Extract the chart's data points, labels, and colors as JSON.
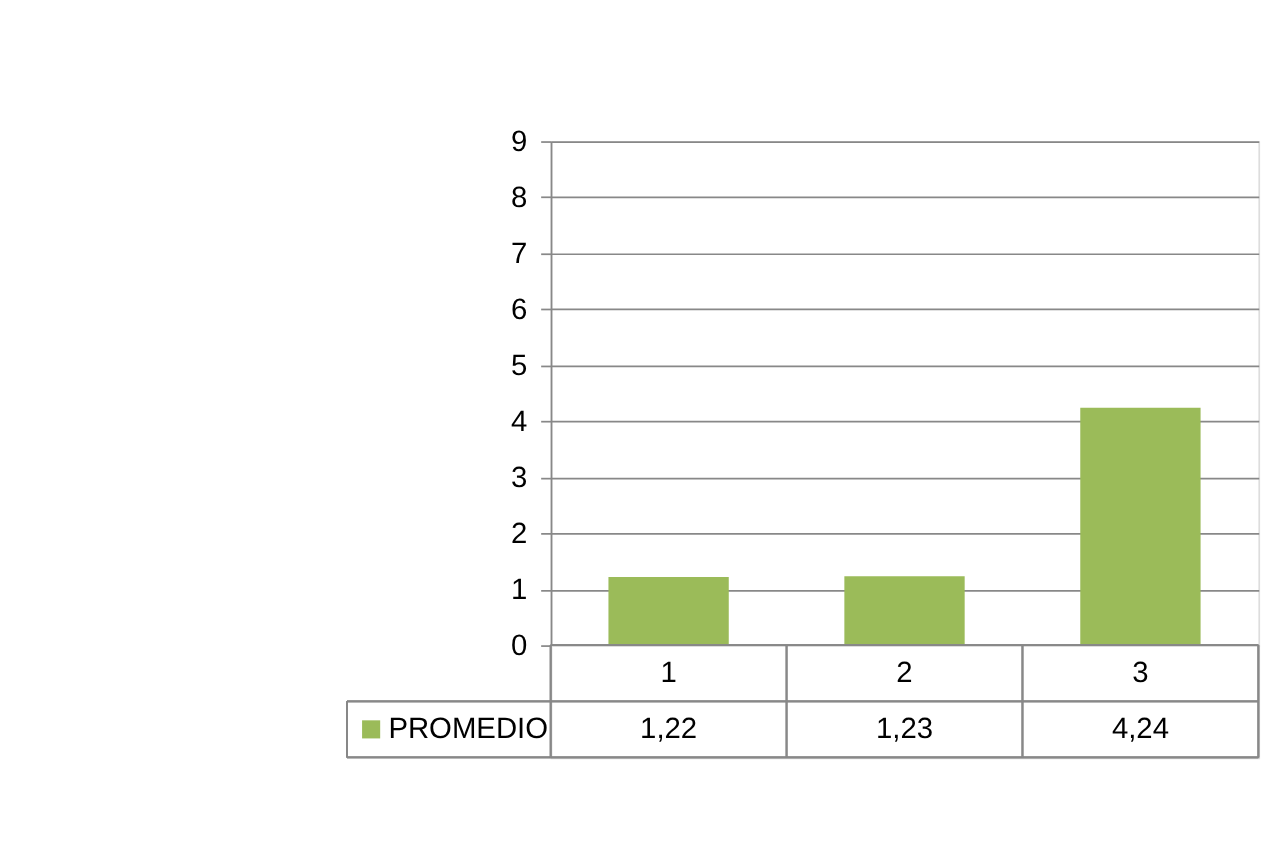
{
  "chart_data": {
    "type": "bar",
    "categories": [
      "1",
      "2",
      "3"
    ],
    "series": [
      {
        "name": "PROMEDIO",
        "color": "#9bbb59",
        "values": [
          1.22,
          1.23,
          4.24
        ],
        "value_labels": [
          "1,22",
          "1,23",
          "4,24"
        ]
      }
    ],
    "ylim": [
      0,
      9
    ],
    "yticks": [
      0,
      1,
      2,
      3,
      4,
      5,
      6,
      7,
      8,
      9
    ],
    "grid": "y",
    "legend": "bottom"
  }
}
